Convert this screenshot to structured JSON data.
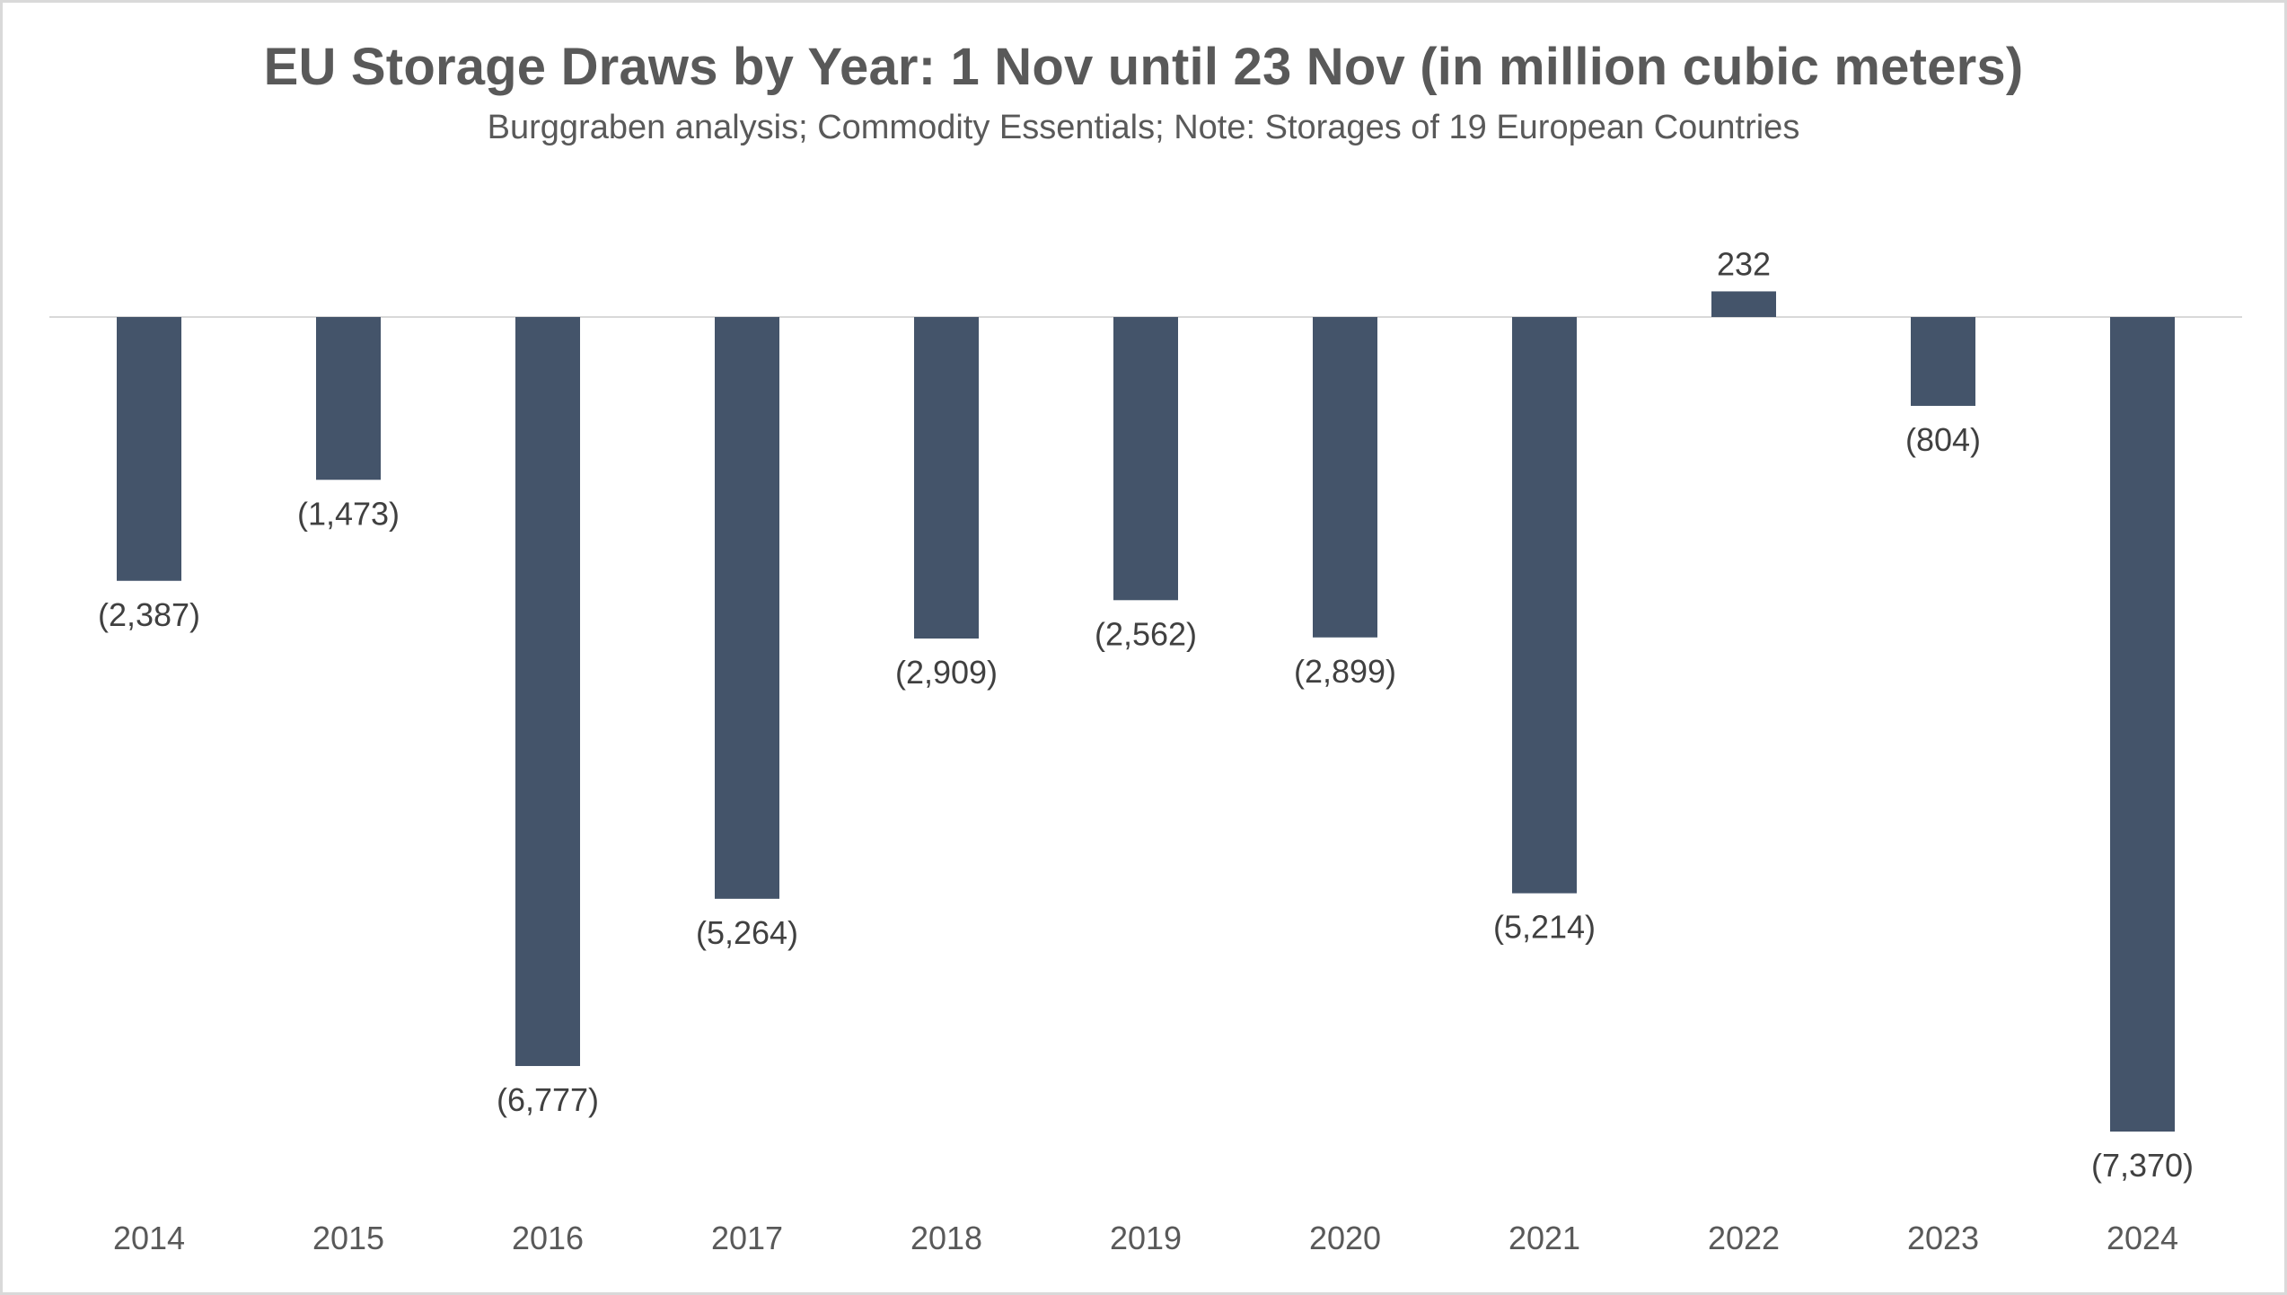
{
  "chart_data": {
    "type": "bar",
    "title": "EU Storage Draws by Year: 1 Nov until 23 Nov (in million cubic meters)",
    "subtitle": "Burggraben analysis; Commodity Essentials; Note: Storages of 19 European Countries",
    "categories": [
      "2014",
      "2015",
      "2016",
      "2017",
      "2018",
      "2019",
      "2020",
      "2021",
      "2022",
      "2023",
      "2024"
    ],
    "values": [
      -2387,
      -1473,
      -6777,
      -5264,
      -2909,
      -2562,
      -2899,
      -5214,
      232,
      -804,
      -7370
    ],
    "data_labels": [
      "(2,387)",
      "(1,473)",
      "(6,777)",
      "(5,264)",
      "(2,909)",
      "(2,562)",
      "(2,899)",
      "(5,214)",
      "232",
      "(804)",
      "(7,370)"
    ],
    "ylim": [
      -7370,
      232
    ],
    "grid": false,
    "legend": "none",
    "xlabel": "",
    "ylabel": "",
    "colors": {
      "bar": "#44546a",
      "zero_line": "#d9d9d9",
      "text": "#595959",
      "label": "#404040"
    }
  }
}
